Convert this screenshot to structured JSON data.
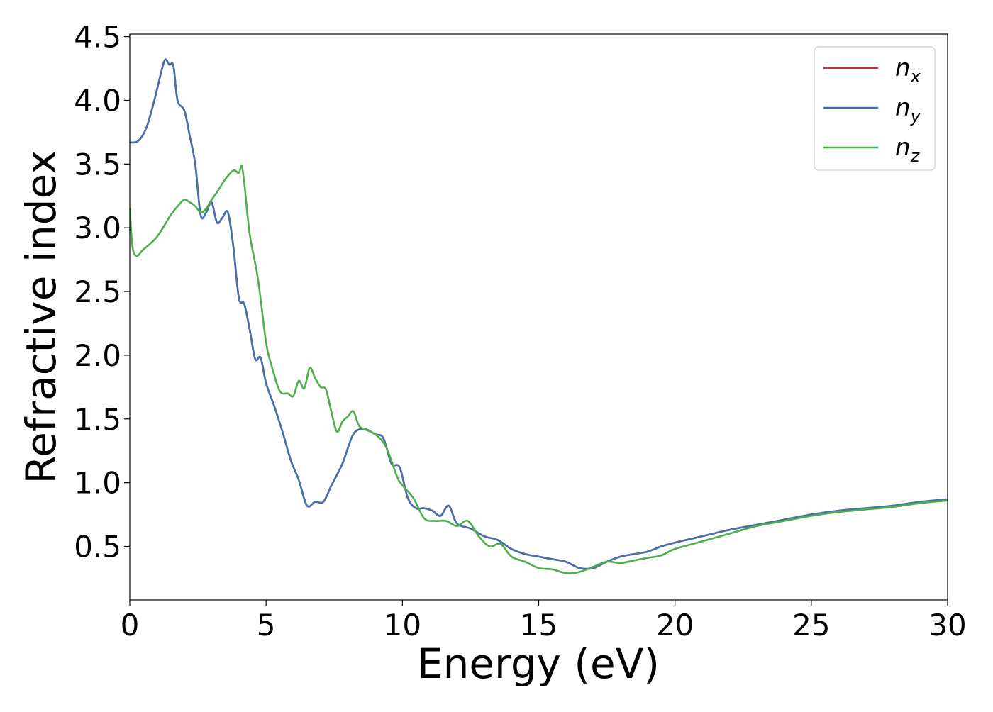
{
  "chart_data": {
    "type": "line",
    "xlabel": "Energy (eV)",
    "ylabel": "Refractive index",
    "xlim": [
      0,
      30
    ],
    "ylim": [
      0.08,
      4.52
    ],
    "xticks": [
      0,
      5,
      10,
      15,
      20,
      25,
      30
    ],
    "xtick_labels": [
      "0",
      "5",
      "10",
      "15",
      "20",
      "25",
      "30"
    ],
    "yticks": [
      0.5,
      1.0,
      1.5,
      2.0,
      2.5,
      3.0,
      3.5,
      4.0,
      4.5
    ],
    "ytick_labels": [
      "0.5",
      "1.0",
      "1.5",
      "2.0",
      "2.5",
      "3.0",
      "3.5",
      "4.0",
      "4.5"
    ],
    "grid": false,
    "legend_position": "top-right",
    "series": [
      {
        "name": "n_x",
        "label_base": "n",
        "label_sub": "x",
        "color": "#d62728",
        "x": [
          0,
          0.3,
          0.6,
          0.9,
          1.15,
          1.3,
          1.45,
          1.6,
          1.75,
          2.0,
          2.2,
          2.4,
          2.6,
          2.8,
          3.0,
          3.2,
          3.4,
          3.6,
          3.8,
          4.0,
          4.2,
          4.4,
          4.6,
          4.8,
          5.0,
          5.3,
          5.6,
          5.9,
          6.2,
          6.5,
          6.8,
          7.1,
          7.4,
          7.8,
          8.2,
          8.6,
          9.0,
          9.3,
          9.6,
          9.9,
          10.2,
          10.5,
          10.8,
          11.1,
          11.4,
          11.7,
          12.0,
          12.5,
          13.0,
          13.5,
          14.0,
          14.5,
          15.0,
          15.5,
          16.0,
          16.5,
          17.0,
          17.5,
          18.0,
          18.5,
          19.0,
          19.5,
          20.0,
          21.0,
          22.0,
          23.0,
          24.0,
          25.0,
          26.0,
          27.0,
          28.0,
          29.0,
          30.0
        ],
        "y": [
          3.67,
          3.68,
          3.78,
          4.0,
          4.22,
          4.32,
          4.28,
          4.27,
          4.0,
          3.92,
          3.72,
          3.5,
          3.1,
          3.12,
          3.2,
          3.04,
          3.08,
          3.12,
          2.85,
          2.45,
          2.4,
          2.2,
          1.97,
          1.98,
          1.78,
          1.6,
          1.4,
          1.18,
          1.02,
          0.82,
          0.85,
          0.85,
          0.98,
          1.15,
          1.38,
          1.42,
          1.38,
          1.35,
          1.15,
          1.12,
          0.88,
          0.8,
          0.8,
          0.78,
          0.74,
          0.82,
          0.68,
          0.64,
          0.58,
          0.55,
          0.48,
          0.44,
          0.42,
          0.4,
          0.38,
          0.33,
          0.33,
          0.38,
          0.42,
          0.44,
          0.46,
          0.5,
          0.53,
          0.58,
          0.63,
          0.67,
          0.71,
          0.75,
          0.78,
          0.8,
          0.82,
          0.85,
          0.87
        ]
      },
      {
        "name": "n_y",
        "label_base": "n",
        "label_sub": "y",
        "color": "#4471b0",
        "x": [
          0,
          0.3,
          0.6,
          0.9,
          1.15,
          1.3,
          1.45,
          1.6,
          1.75,
          2.0,
          2.2,
          2.4,
          2.6,
          2.8,
          3.0,
          3.2,
          3.4,
          3.6,
          3.8,
          4.0,
          4.2,
          4.4,
          4.6,
          4.8,
          5.0,
          5.3,
          5.6,
          5.9,
          6.2,
          6.5,
          6.8,
          7.1,
          7.4,
          7.8,
          8.2,
          8.6,
          9.0,
          9.3,
          9.6,
          9.9,
          10.2,
          10.5,
          10.8,
          11.1,
          11.4,
          11.7,
          12.0,
          12.5,
          13.0,
          13.5,
          14.0,
          14.5,
          15.0,
          15.5,
          16.0,
          16.5,
          17.0,
          17.5,
          18.0,
          18.5,
          19.0,
          19.5,
          20.0,
          21.0,
          22.0,
          23.0,
          24.0,
          25.0,
          26.0,
          27.0,
          28.0,
          29.0,
          30.0
        ],
        "y": [
          3.67,
          3.68,
          3.78,
          4.0,
          4.22,
          4.32,
          4.28,
          4.27,
          4.0,
          3.92,
          3.72,
          3.5,
          3.1,
          3.12,
          3.2,
          3.04,
          3.08,
          3.12,
          2.85,
          2.45,
          2.4,
          2.2,
          1.97,
          1.98,
          1.78,
          1.6,
          1.4,
          1.18,
          1.02,
          0.82,
          0.85,
          0.85,
          0.98,
          1.15,
          1.38,
          1.42,
          1.38,
          1.35,
          1.15,
          1.12,
          0.88,
          0.8,
          0.8,
          0.78,
          0.74,
          0.82,
          0.68,
          0.64,
          0.58,
          0.55,
          0.48,
          0.44,
          0.42,
          0.4,
          0.38,
          0.33,
          0.33,
          0.38,
          0.42,
          0.44,
          0.46,
          0.5,
          0.53,
          0.58,
          0.63,
          0.67,
          0.71,
          0.75,
          0.78,
          0.8,
          0.82,
          0.85,
          0.87
        ]
      },
      {
        "name": "n_z",
        "label_base": "n",
        "label_sub": "z",
        "color": "#4daf4a",
        "x": [
          0,
          0.1,
          0.25,
          0.5,
          1.0,
          1.5,
          1.8,
          2.0,
          2.2,
          2.4,
          2.6,
          2.8,
          3.0,
          3.2,
          3.5,
          3.8,
          4.0,
          4.1,
          4.2,
          4.4,
          4.7,
          5.0,
          5.2,
          5.5,
          5.8,
          6.0,
          6.2,
          6.4,
          6.6,
          6.8,
          7.0,
          7.2,
          7.4,
          7.6,
          7.8,
          8.0,
          8.2,
          8.4,
          8.6,
          9.0,
          9.4,
          9.8,
          10.0,
          10.4,
          10.8,
          11.2,
          11.6,
          12.0,
          12.4,
          12.8,
          13.2,
          13.6,
          14.0,
          14.5,
          15.0,
          15.5,
          16.0,
          16.5,
          17.0,
          17.5,
          18.0,
          18.5,
          19.0,
          19.5,
          20.0,
          21.0,
          22.0,
          23.0,
          24.0,
          25.0,
          26.0,
          27.0,
          28.0,
          29.0,
          30.0
        ],
        "y": [
          3.15,
          2.85,
          2.78,
          2.83,
          2.93,
          3.1,
          3.18,
          3.22,
          3.2,
          3.17,
          3.12,
          3.15,
          3.22,
          3.28,
          3.38,
          3.45,
          3.43,
          3.49,
          3.35,
          2.95,
          2.6,
          2.1,
          1.92,
          1.72,
          1.7,
          1.68,
          1.8,
          1.74,
          1.9,
          1.82,
          1.75,
          1.73,
          1.55,
          1.4,
          1.48,
          1.52,
          1.56,
          1.45,
          1.42,
          1.38,
          1.28,
          1.05,
          0.98,
          0.88,
          0.72,
          0.7,
          0.7,
          0.66,
          0.7,
          0.58,
          0.5,
          0.52,
          0.42,
          0.38,
          0.33,
          0.32,
          0.29,
          0.3,
          0.34,
          0.38,
          0.37,
          0.39,
          0.41,
          0.43,
          0.48,
          0.54,
          0.6,
          0.66,
          0.7,
          0.74,
          0.77,
          0.79,
          0.81,
          0.84,
          0.86
        ]
      }
    ]
  }
}
